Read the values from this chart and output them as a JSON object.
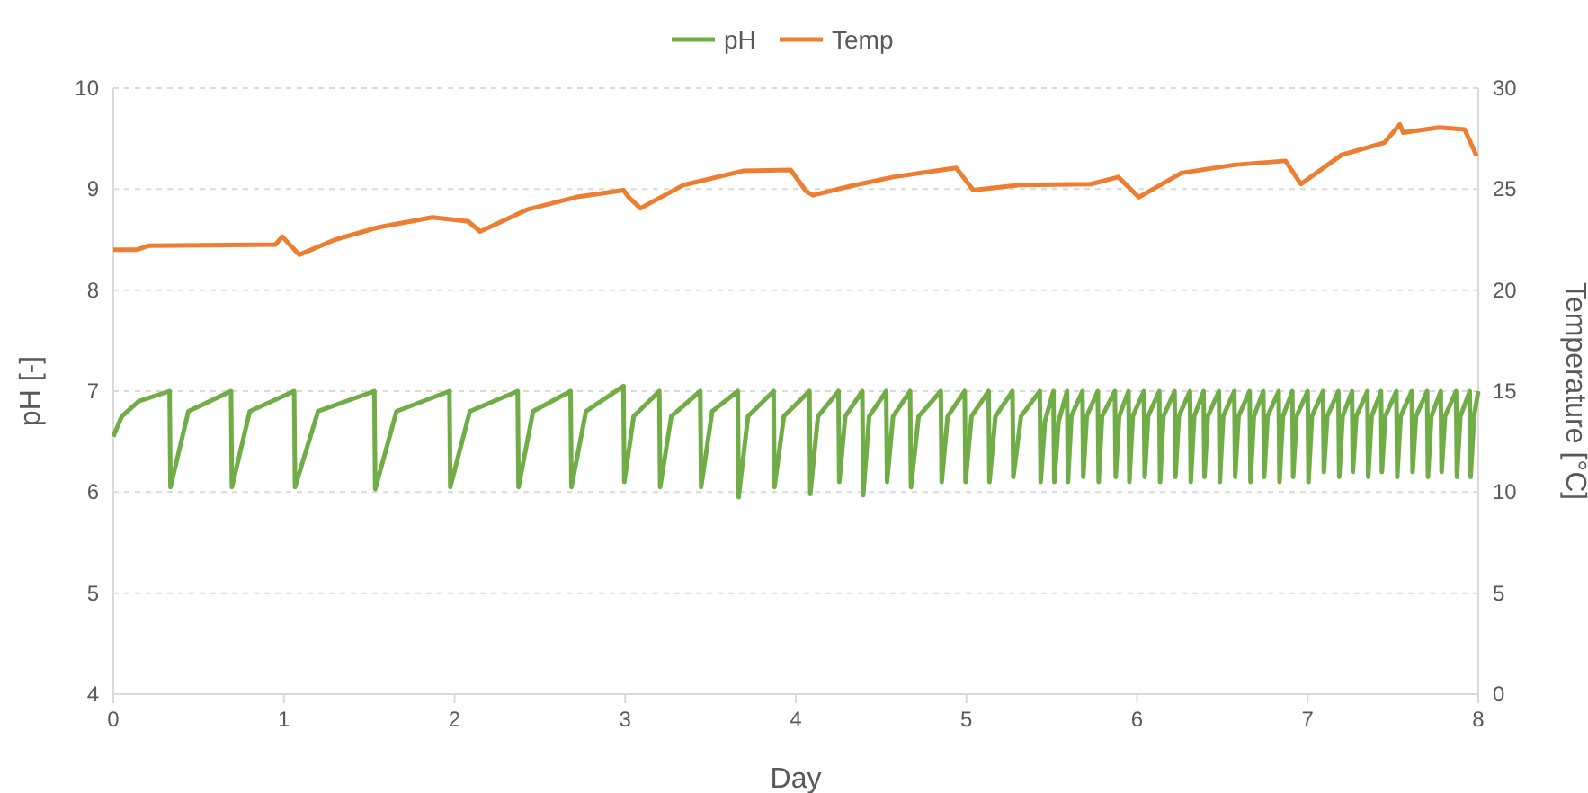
{
  "chart_data": {
    "type": "line",
    "xlabel": "Day",
    "ylabel": "pH [-]",
    "y2label": "Temperature [°C]",
    "xlim": [
      0,
      8
    ],
    "xticks": [
      0,
      1,
      2,
      3,
      4,
      5,
      6,
      7,
      8
    ],
    "ylim": [
      4,
      10
    ],
    "yticks": [
      4,
      5,
      6,
      7,
      8,
      9,
      10
    ],
    "y2lim": [
      0,
      30
    ],
    "y2ticks": [
      0,
      5,
      10,
      15,
      20,
      25,
      30
    ],
    "grid": "y",
    "legend": "top",
    "line_style": "solid",
    "marker": "none",
    "series": [
      {
        "name": "pH",
        "color": "#70ad47",
        "x": [
          0,
          0.05,
          0.15,
          0.33,
          0.335,
          0.44,
          0.69,
          0.695,
          0.8,
          1.06,
          1.065,
          1.2,
          1.53,
          1.535,
          1.66,
          1.97,
          1.975,
          2.09,
          2.37,
          2.375,
          2.46,
          2.68,
          2.685,
          2.77,
          2.99,
          2.995,
          3.05,
          3.2,
          3.205,
          3.27,
          3.44,
          3.445,
          3.51,
          3.66,
          3.665,
          3.72,
          3.87,
          3.875,
          3.93,
          4.08,
          4.085,
          4.13,
          4.25,
          4.255,
          4.29,
          4.39,
          4.395,
          4.43,
          4.53,
          4.535,
          4.57,
          4.67,
          4.675,
          4.72,
          4.85,
          4.855,
          4.89,
          4.99,
          4.995,
          5.03,
          5.13,
          5.135,
          5.17,
          5.27,
          5.275,
          5.32,
          5.43,
          5.435,
          5.46,
          5.51,
          5.515,
          5.54,
          5.59,
          5.595,
          5.615,
          5.68,
          5.685,
          5.705,
          5.77,
          5.775,
          5.795,
          5.87,
          5.875,
          5.895,
          5.95,
          5.955,
          5.975,
          6.04,
          6.045,
          6.065,
          6.13,
          6.135,
          6.155,
          6.22,
          6.225,
          6.245,
          6.31,
          6.315,
          6.335,
          6.39,
          6.395,
          6.415,
          6.48,
          6.485,
          6.505,
          6.57,
          6.575,
          6.595,
          6.66,
          6.665,
          6.685,
          6.74,
          6.745,
          6.765,
          6.83,
          6.835,
          6.855,
          6.91,
          6.915,
          6.935,
          7.0,
          7.005,
          7.025,
          7.09,
          7.095,
          7.115,
          7.18,
          7.185,
          7.205,
          7.26,
          7.265,
          7.285,
          7.35,
          7.355,
          7.375,
          7.43,
          7.435,
          7.455,
          7.52,
          7.525,
          7.545,
          7.61,
          7.615,
          7.635,
          7.7,
          7.705,
          7.725,
          7.78,
          7.785,
          7.805,
          7.87,
          7.875,
          7.895,
          7.95,
          7.955,
          7.975,
          8.0
        ],
        "values": [
          6.55,
          6.75,
          6.9,
          7.0,
          6.05,
          6.8,
          7.0,
          6.05,
          6.8,
          7.0,
          6.05,
          6.8,
          7.0,
          6.03,
          6.8,
          7.0,
          6.05,
          6.8,
          7.0,
          6.05,
          6.8,
          7.0,
          6.05,
          6.8,
          7.05,
          6.1,
          6.75,
          7.0,
          6.05,
          6.75,
          7.0,
          6.05,
          6.8,
          7.0,
          5.95,
          6.75,
          7.0,
          6.05,
          6.75,
          7.0,
          5.98,
          6.75,
          7.0,
          6.1,
          6.75,
          7.0,
          5.97,
          6.75,
          7.0,
          6.1,
          6.75,
          7.0,
          6.05,
          6.75,
          7.0,
          6.1,
          6.75,
          7.0,
          6.1,
          6.75,
          7.0,
          6.1,
          6.75,
          7.0,
          6.15,
          6.75,
          7.0,
          6.1,
          6.7,
          7.0,
          6.1,
          6.7,
          7.0,
          6.1,
          6.75,
          7.0,
          6.15,
          6.75,
          7.0,
          6.1,
          6.75,
          7.0,
          6.15,
          6.75,
          7.0,
          6.1,
          6.75,
          7.0,
          6.15,
          6.75,
          7.0,
          6.1,
          6.75,
          7.0,
          6.15,
          6.75,
          7.0,
          6.1,
          6.75,
          7.0,
          6.15,
          6.75,
          7.0,
          6.1,
          6.75,
          7.0,
          6.15,
          6.75,
          7.0,
          6.1,
          6.75,
          7.0,
          6.15,
          6.75,
          7.0,
          6.1,
          6.75,
          7.0,
          6.15,
          6.75,
          7.0,
          6.1,
          6.75,
          7.0,
          6.2,
          6.75,
          7.0,
          6.15,
          6.75,
          7.0,
          6.2,
          6.75,
          7.0,
          6.15,
          6.75,
          7.0,
          6.2,
          6.75,
          7.0,
          6.15,
          6.75,
          7.0,
          6.2,
          6.75,
          7.0,
          6.15,
          6.75,
          7.0,
          6.2,
          6.75,
          7.0,
          6.15,
          6.75,
          7.0,
          6.15,
          6.75,
          7.0
        ]
      },
      {
        "name": "Temp",
        "color": "#ed7d31",
        "axis": "y2",
        "x": [
          0,
          0.14,
          0.21,
          0.95,
          0.99,
          1.09,
          1.3,
          1.55,
          1.87,
          2.08,
          2.15,
          2.43,
          2.71,
          2.99,
          3.02,
          3.09,
          3.34,
          3.69,
          3.97,
          4.06,
          4.1,
          4.32,
          4.57,
          4.94,
          5.04,
          5.31,
          5.73,
          5.89,
          6.01,
          6.26,
          6.57,
          6.87,
          6.96,
          7.2,
          7.45,
          7.54,
          7.56,
          7.77,
          7.92,
          7.99
        ],
        "values": [
          22.0,
          22.0,
          22.2,
          22.25,
          22.65,
          21.75,
          22.5,
          23.1,
          23.6,
          23.4,
          22.9,
          24.0,
          24.6,
          24.95,
          24.6,
          24.05,
          25.2,
          25.9,
          25.95,
          24.9,
          24.7,
          25.15,
          25.6,
          26.05,
          24.95,
          25.2,
          25.25,
          25.6,
          24.6,
          25.8,
          26.2,
          26.4,
          25.25,
          26.7,
          27.3,
          28.2,
          27.8,
          28.05,
          27.95,
          26.65
        ]
      }
    ]
  }
}
